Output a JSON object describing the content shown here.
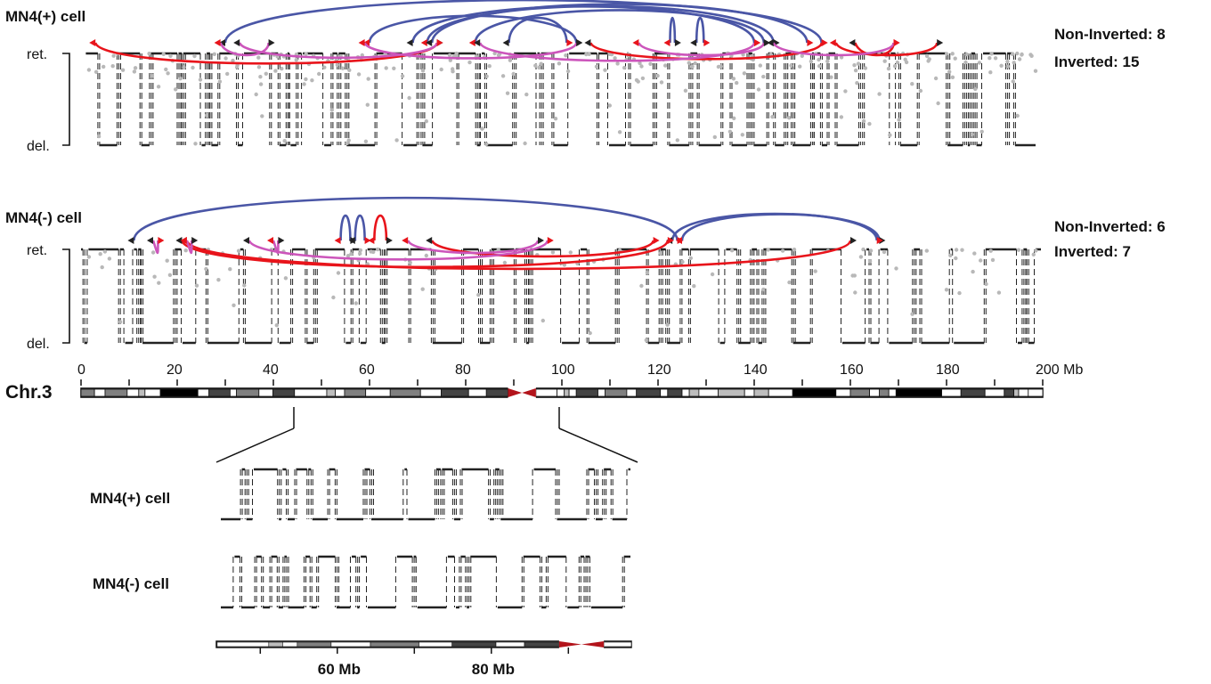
{
  "colors": {
    "inverted_arc": "#4a56a6",
    "non_inverted_arc": "#e8141b",
    "other_arc": "#cc55bb",
    "centromere": "#b3141b",
    "dots": "#b8b8b8"
  },
  "panel_plus": {
    "title": "MN4(+) cell",
    "ret_label": "ret.",
    "del_label": "del.",
    "non_inverted": "Non-Inverted: 8",
    "inverted": "Inverted: 15",
    "arcs": [
      {
        "from": 30,
        "to": 154,
        "color": "blue",
        "side": "above"
      },
      {
        "from": 60,
        "to": 103,
        "color": "blue",
        "side": "above"
      },
      {
        "from": 69,
        "to": 140,
        "color": "blue",
        "side": "above"
      },
      {
        "from": 72,
        "to": 144,
        "color": "blue",
        "side": "above"
      },
      {
        "from": 73,
        "to": 151,
        "color": "blue",
        "side": "above"
      },
      {
        "from": 82,
        "to": 142,
        "color": "blue",
        "side": "above"
      },
      {
        "from": 89,
        "to": 101,
        "color": "blue",
        "side": "above"
      },
      {
        "from": 122.5,
        "to": 123.5,
        "color": "blue",
        "side": "above"
      },
      {
        "from": 128,
        "to": 129.5,
        "color": "blue",
        "side": "above"
      },
      {
        "from": 3,
        "to": 74,
        "color": "red",
        "side": "below"
      },
      {
        "from": 106,
        "to": 154,
        "color": "red",
        "side": "below"
      },
      {
        "from": 157,
        "to": 178,
        "color": "red",
        "side": "below"
      },
      {
        "from": 161,
        "to": 169,
        "color": "red",
        "side": "below"
      },
      {
        "from": 29,
        "to": 39,
        "color": "magenta",
        "side": "below"
      },
      {
        "from": 33,
        "to": 74,
        "color": "magenta",
        "side": "below"
      },
      {
        "from": 59,
        "to": 103,
        "color": "magenta",
        "side": "below"
      },
      {
        "from": 83,
        "to": 140,
        "color": "magenta",
        "side": "below"
      },
      {
        "from": 116,
        "to": 142,
        "color": "magenta",
        "side": "below"
      },
      {
        "from": 144,
        "to": 169,
        "color": "magenta",
        "side": "below"
      }
    ]
  },
  "panel_minus": {
    "title": "MN4(-) cell",
    "ret_label": "ret.",
    "del_label": "del.",
    "non_inverted": "Non-Inverted: 6",
    "inverted": "Inverted: 7",
    "arcs": [
      {
        "from": 11,
        "to": 124,
        "color": "blue",
        "side": "above"
      },
      {
        "from": 125,
        "to": 166,
        "color": "blue",
        "side": "above"
      },
      {
        "from": 123,
        "to": 165.5,
        "color": "blue",
        "side": "above"
      },
      {
        "from": 54,
        "to": 56,
        "color": "blue",
        "side": "above"
      },
      {
        "from": 57,
        "to": 59,
        "color": "blue",
        "side": "above"
      },
      {
        "from": 61,
        "to": 63.5,
        "color": "red",
        "side": "above"
      },
      {
        "from": 21,
        "to": 122,
        "color": "red",
        "side": "below"
      },
      {
        "from": 22,
        "to": 160,
        "color": "red",
        "side": "below"
      },
      {
        "from": 73,
        "to": 119,
        "color": "red",
        "side": "below"
      },
      {
        "from": 68,
        "to": 95,
        "color": "magenta",
        "side": "below"
      },
      {
        "from": 15,
        "to": 16,
        "color": "magenta",
        "side": "below"
      },
      {
        "from": 22,
        "to": 23,
        "color": "magenta",
        "side": "below"
      },
      {
        "from": 35,
        "to": 97,
        "color": "magenta",
        "side": "below"
      },
      {
        "from": 40,
        "to": 41,
        "color": "magenta",
        "side": "below"
      }
    ]
  },
  "chromosome": {
    "name": "Chr.3",
    "ticks": [
      "0",
      "20",
      "40",
      "60",
      "80",
      "100",
      "120",
      "140",
      "160",
      "180",
      "200 Mb"
    ],
    "centromere_mb": [
      88.8,
      94.6
    ],
    "bands": [
      [
        0,
        2.8,
        "g"
      ],
      [
        2.8,
        5,
        "w"
      ],
      [
        5,
        9.6,
        "g"
      ],
      [
        9.6,
        12,
        "w"
      ],
      [
        12,
        13.3,
        "l"
      ],
      [
        13.3,
        16.5,
        "w"
      ],
      [
        16.5,
        24.3,
        "k"
      ],
      [
        24.3,
        26.6,
        "w"
      ],
      [
        26.6,
        31,
        "d"
      ],
      [
        31,
        32.3,
        "w"
      ],
      [
        32.3,
        37,
        "g"
      ],
      [
        37,
        39.9,
        "w"
      ],
      [
        39.9,
        44.4,
        "d"
      ],
      [
        44.4,
        51.1,
        "w"
      ],
      [
        51.1,
        52.9,
        "l"
      ],
      [
        52.9,
        54.8,
        "w"
      ],
      [
        54.8,
        59.2,
        "g"
      ],
      [
        59.2,
        64.3,
        "w"
      ],
      [
        64.3,
        70.6,
        "g"
      ],
      [
        70.6,
        74.9,
        "w"
      ],
      [
        74.9,
        80.6,
        "d"
      ],
      [
        80.6,
        84.3,
        "w"
      ],
      [
        84.3,
        88.8,
        "d"
      ],
      [
        94.6,
        99,
        "w"
      ],
      [
        99,
        100.5,
        "w"
      ],
      [
        100.5,
        101.5,
        "l"
      ],
      [
        101.5,
        103,
        "w"
      ],
      [
        103,
        107.5,
        "d"
      ],
      [
        107.5,
        109,
        "w"
      ],
      [
        109,
        113.5,
        "g"
      ],
      [
        113.5,
        115.5,
        "w"
      ],
      [
        115.5,
        120.5,
        "d"
      ],
      [
        120.5,
        122,
        "w"
      ],
      [
        122,
        125,
        "d"
      ],
      [
        125,
        126.5,
        "w"
      ],
      [
        126.5,
        128.5,
        "l"
      ],
      [
        128.5,
        132.5,
        "w"
      ],
      [
        132.5,
        138,
        "l"
      ],
      [
        138,
        140,
        "w"
      ],
      [
        140,
        143,
        "l"
      ],
      [
        143,
        148,
        "w"
      ],
      [
        148,
        157,
        "k"
      ],
      [
        157,
        160,
        "w"
      ],
      [
        160,
        164,
        "g"
      ],
      [
        164,
        166,
        "w"
      ],
      [
        166,
        168,
        "g"
      ],
      [
        168,
        169.5,
        "w"
      ],
      [
        169.5,
        179,
        "k"
      ],
      [
        179,
        183,
        "w"
      ],
      [
        183,
        188,
        "d"
      ],
      [
        188,
        192,
        "w"
      ],
      [
        192,
        194,
        "d"
      ],
      [
        194,
        195,
        "l"
      ],
      [
        195,
        197,
        "w"
      ],
      [
        197,
        200,
        "w"
      ]
    ]
  },
  "inset": {
    "plus_label": "MN4(+) cell",
    "minus_label": "MN4(-) cell",
    "ticks": [
      "",
      "60 Mb",
      "",
      "80 Mb",
      ""
    ],
    "range_mb": [
      44.3,
      98.4
    ]
  }
}
